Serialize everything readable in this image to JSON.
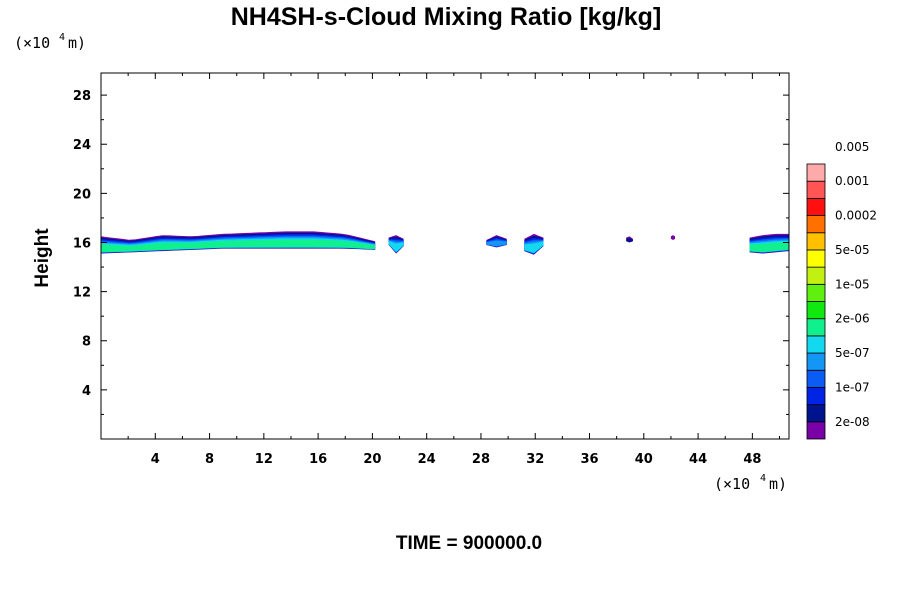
{
  "chart_data": {
    "type": "heatmap",
    "title": "NH4SH-s-Cloud Mixing Ratio [kg/kg]",
    "ylabel": "Height",
    "y_unit": {
      "prefix": "(×10",
      "exp": "4",
      "suffix": " m)"
    },
    "x_unit": {
      "prefix": "(×10",
      "exp": "4",
      "suffix": " m)"
    },
    "xlim": [
      0,
      50.7
    ],
    "ylim": [
      0,
      29.8
    ],
    "x_ticks": [
      4,
      8,
      12,
      16,
      20,
      24,
      28,
      32,
      36,
      40,
      44,
      48
    ],
    "y_ticks": [
      4,
      8,
      12,
      16,
      20,
      24,
      28
    ],
    "colorbar": {
      "colors": [
        "#7a00a8",
        "#00138f",
        "#0024e6",
        "#0b5cf5",
        "#1496f5",
        "#12d9f0",
        "#10f08c",
        "#10e810",
        "#5ff010",
        "#c2f010",
        "#ffff00",
        "#ffc000",
        "#ff7000",
        "#ff1010",
        "#ff5555",
        "#ffaaaa"
      ],
      "labels": [
        "2e-08",
        "1e-07",
        "5e-07",
        "2e-06",
        "1e-05",
        "5e-05",
        "0.0002",
        "0.001",
        "0.005"
      ]
    },
    "regions": [
      {
        "x0": 0,
        "x1": 20.2,
        "y_top": [
          16.5,
          16.2,
          16.6,
          16.5,
          16.7,
          16.8,
          16.9,
          16.9,
          16.7,
          16.1
        ],
        "y_bottom": [
          15.1,
          15.2,
          15.3,
          15.4,
          15.5,
          15.5,
          15.5,
          15.5,
          15.5,
          15.4
        ],
        "level": 6
      },
      {
        "x0": 21.2,
        "x1": 22.3,
        "y_top": [
          16.4,
          16.6,
          16.3
        ],
        "y_bottom": [
          15.8,
          15.1,
          15.7
        ],
        "level": 5
      },
      {
        "x0": 28.4,
        "x1": 29.9,
        "y_top": [
          16.2,
          16.6,
          16.3
        ],
        "y_bottom": [
          15.8,
          15.6,
          15.8
        ],
        "level": 4
      },
      {
        "x0": 31.2,
        "x1": 32.6,
        "y_top": [
          16.3,
          16.7,
          16.4
        ],
        "y_bottom": [
          15.3,
          15.0,
          15.7
        ],
        "level": 5
      },
      {
        "x0": 38.7,
        "x1": 39.2,
        "y_top": [
          16.4,
          16.5,
          16.3
        ],
        "y_bottom": [
          16.1,
          16.0,
          16.1
        ],
        "level": 1
      },
      {
        "x0": 42.0,
        "x1": 42.3,
        "y_top": [
          16.5,
          16.6,
          16.5
        ],
        "y_bottom": [
          16.3,
          16.2,
          16.3
        ],
        "level": 0
      },
      {
        "x0": 47.8,
        "x1": 50.7,
        "y_top": [
          16.4,
          16.6,
          16.7,
          16.7
        ],
        "y_bottom": [
          15.2,
          15.1,
          15.2,
          15.3
        ],
        "level": 6
      }
    ]
  },
  "footer": {
    "time_label": "TIME = 900000.0"
  }
}
